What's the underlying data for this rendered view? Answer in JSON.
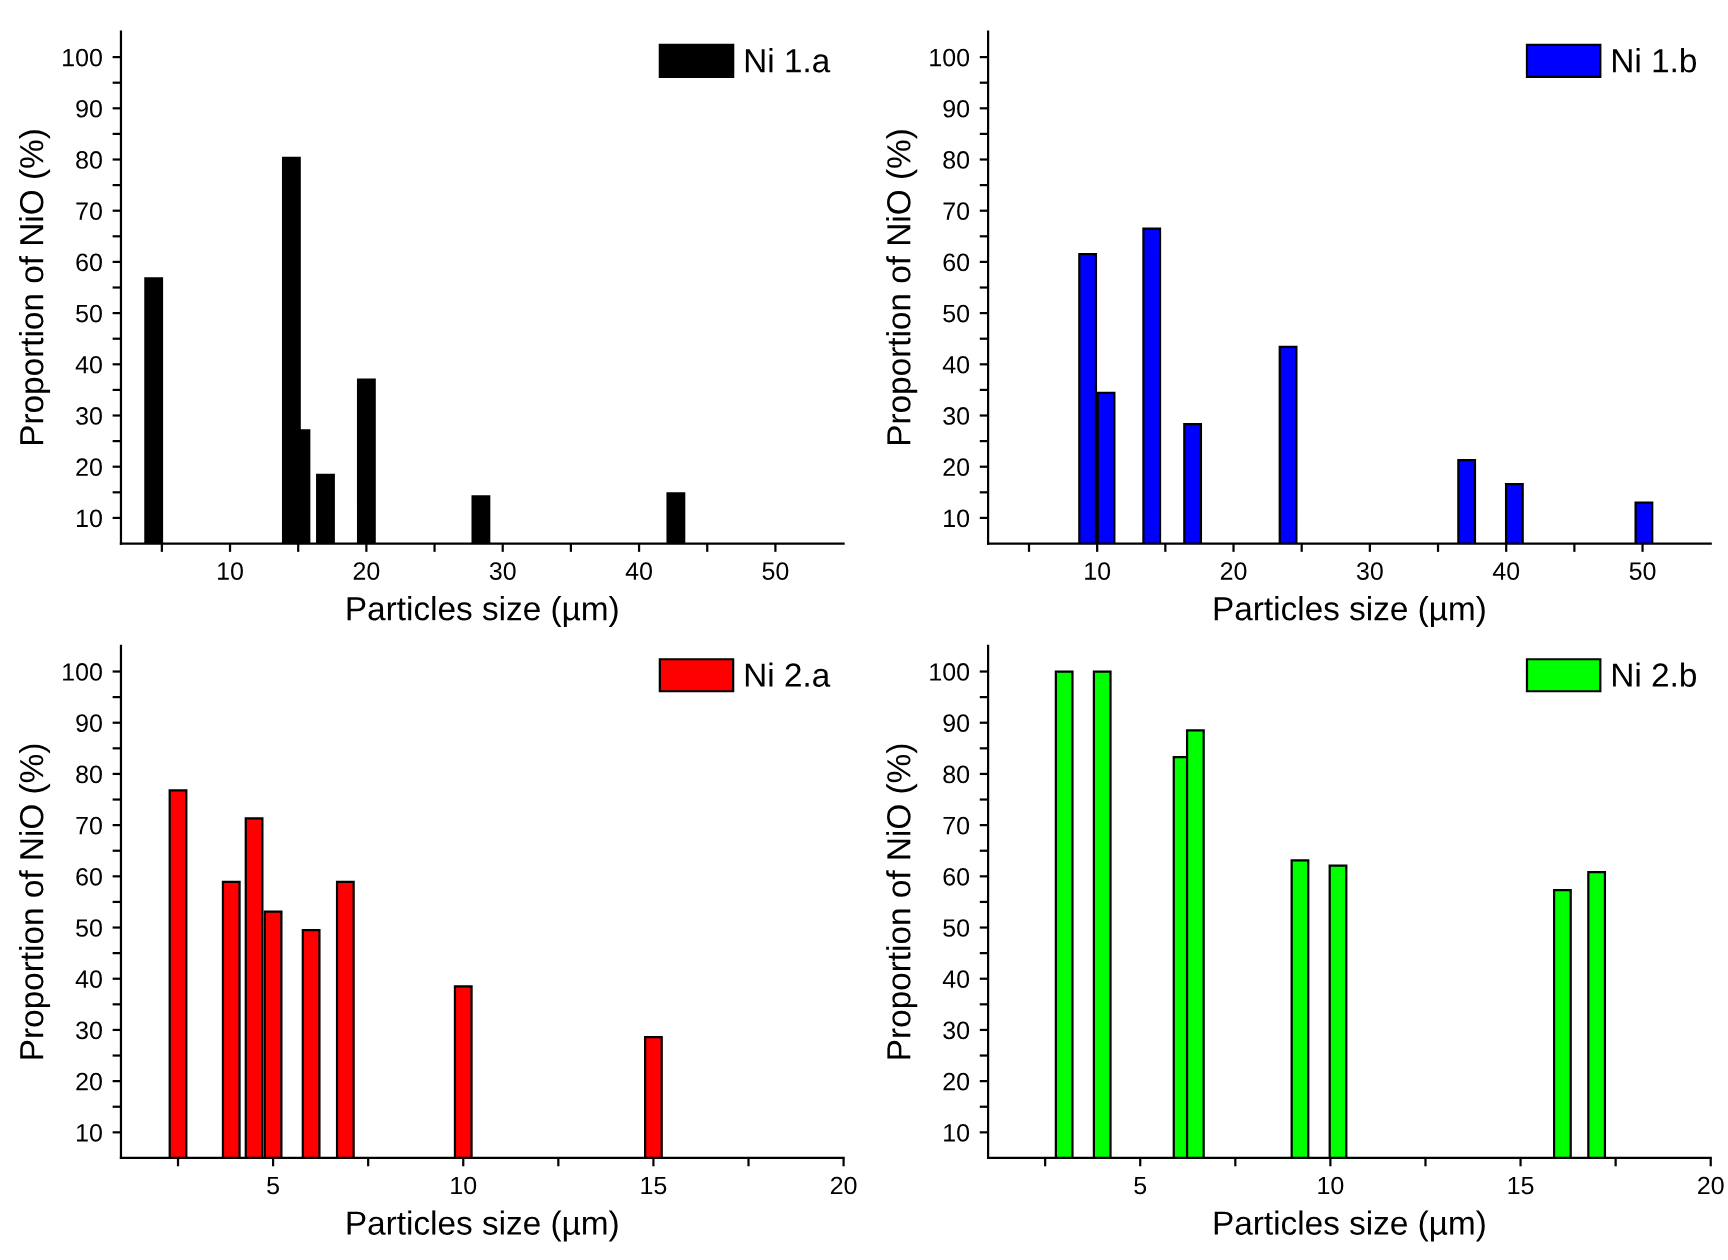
{
  "chart_data": [
    {
      "type": "bar",
      "xlabel": "Particles size (µm)",
      "ylabel": "Proportion of NiO (%)",
      "legend": "top right",
      "grid": false,
      "x": [
        4.4,
        14.5,
        15.2,
        17.0,
        20.0,
        28.4,
        42.7
      ],
      "series": [
        {
          "name": "Ni 1.a",
          "color": "#000000",
          "values": [
            56.8,
            80.3,
            27.1,
            18.4,
            37.0,
            14.2,
            14.8
          ]
        }
      ],
      "xlim": [
        2,
        55
      ],
      "ylim": [
        5,
        105
      ],
      "xticks": [
        {
          "value": 5,
          "label": null
        },
        10,
        {
          "value": 15,
          "label": null
        },
        20,
        {
          "value": 25,
          "label": null
        },
        30,
        {
          "value": 35,
          "label": null
        },
        40,
        {
          "value": 45,
          "label": null
        },
        50
      ],
      "yticks": [
        10,
        {
          "value": 15,
          "label": null
        },
        20,
        {
          "value": 25,
          "label": null
        },
        30,
        {
          "value": 35,
          "label": null
        },
        40,
        {
          "value": 45,
          "label": null
        },
        50,
        {
          "value": 55,
          "label": null
        },
        60,
        {
          "value": 65,
          "label": null
        },
        70,
        {
          "value": 75,
          "label": null
        },
        80,
        {
          "value": 85,
          "label": null
        },
        90,
        {
          "value": 95,
          "label": null
        },
        100
      ]
    },
    {
      "type": "bar",
      "xlabel": "Particles size (µm)",
      "ylabel": "Proportion of NiO (%)",
      "legend": "top right",
      "grid": false,
      "x": [
        9.3,
        10.65,
        14.0,
        17.0,
        24.0,
        37.1,
        40.6,
        50.1
      ],
      "series": [
        {
          "name": "Ni 1.b",
          "color": "#0000ff",
          "values": [
            61.5,
            34.4,
            66.5,
            28.3,
            43.4,
            21.3,
            16.6,
            13.0
          ]
        }
      ],
      "xlim": [
        2,
        55
      ],
      "ylim": [
        5,
        105
      ],
      "xticks": [
        {
          "value": 5,
          "label": null
        },
        10,
        {
          "value": 15,
          "label": null
        },
        20,
        {
          "value": 25,
          "label": null
        },
        30,
        {
          "value": 35,
          "label": null
        },
        40,
        {
          "value": 45,
          "label": null
        },
        50
      ],
      "yticks": [
        10,
        {
          "value": 15,
          "label": null
        },
        20,
        {
          "value": 25,
          "label": null
        },
        30,
        {
          "value": 35,
          "label": null
        },
        40,
        {
          "value": 45,
          "label": null
        },
        50,
        {
          "value": 55,
          "label": null
        },
        60,
        {
          "value": 65,
          "label": null
        },
        70,
        {
          "value": 75,
          "label": null
        },
        80,
        {
          "value": 85,
          "label": null
        },
        90,
        {
          "value": 95,
          "label": null
        },
        100
      ]
    },
    {
      "type": "bar",
      "xlabel": "Particles size (µm)",
      "ylabel": "Proportion of NiO (%)",
      "legend": "top right",
      "grid": false,
      "x": [
        2.5,
        3.9,
        4.5,
        5.0,
        6.0,
        6.9,
        10.0,
        15.0
      ],
      "series": [
        {
          "name": "Ni 2.a",
          "color": "#ff0000",
          "values": [
            76.8,
            58.9,
            71.3,
            53.1,
            49.5,
            58.9,
            38.5,
            28.6
          ]
        }
      ],
      "xlim": [
        1,
        20
      ],
      "ylim": [
        5,
        105
      ],
      "xticks": [
        {
          "value": 2.5,
          "label": null
        },
        5,
        {
          "value": 7.5,
          "label": null
        },
        10,
        {
          "value": 12.5,
          "label": null
        },
        15,
        {
          "value": 17.5,
          "label": null
        },
        20
      ],
      "yticks": [
        10,
        {
          "value": 15,
          "label": null
        },
        20,
        {
          "value": 25,
          "label": null
        },
        30,
        {
          "value": 35,
          "label": null
        },
        40,
        {
          "value": 45,
          "label": null
        },
        50,
        {
          "value": 55,
          "label": null
        },
        60,
        {
          "value": 65,
          "label": null
        },
        70,
        {
          "value": 75,
          "label": null
        },
        80,
        {
          "value": 85,
          "label": null
        },
        90,
        {
          "value": 95,
          "label": null
        },
        100
      ]
    },
    {
      "type": "bar",
      "xlabel": "Particles size (µm)",
      "ylabel": "Proportion of NiO (%)",
      "legend": "top right",
      "grid": false,
      "x": [
        3.0,
        4.0,
        6.1,
        6.45,
        9.2,
        10.2,
        16.1,
        17.0
      ],
      "series": [
        {
          "name": "Ni 2.b",
          "color": "#00ff00",
          "values": [
            100,
            100,
            83.3,
            88.5,
            63.1,
            62.1,
            57.3,
            60.8
          ]
        }
      ],
      "xlim": [
        1,
        20
      ],
      "ylim": [
        5,
        105
      ],
      "xticks": [
        {
          "value": 2.5,
          "label": null
        },
        5,
        {
          "value": 7.5,
          "label": null
        },
        10,
        {
          "value": 12.5,
          "label": null
        },
        15,
        {
          "value": 17.5,
          "label": null
        },
        20
      ],
      "yticks": [
        10,
        {
          "value": 15,
          "label": null
        },
        20,
        {
          "value": 25,
          "label": null
        },
        30,
        {
          "value": 35,
          "label": null
        },
        40,
        {
          "value": 45,
          "label": null
        },
        50,
        {
          "value": 55,
          "label": null
        },
        60,
        {
          "value": 65,
          "label": null
        },
        70,
        {
          "value": 75,
          "label": null
        },
        80,
        {
          "value": 85,
          "label": null
        },
        90,
        {
          "value": 95,
          "label": null
        },
        100
      ]
    }
  ]
}
